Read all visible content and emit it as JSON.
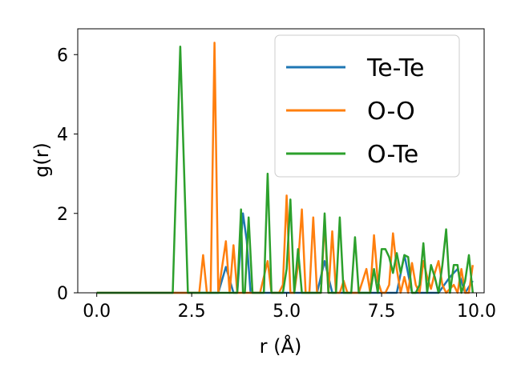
{
  "chart_data": {
    "type": "line",
    "title": "",
    "xlabel": "r (Å)",
    "ylabel": "g(r)",
    "xlim": [
      -0.5,
      10.2
    ],
    "ylim": [
      0,
      6.65
    ],
    "xticks": [
      0.0,
      2.5,
      5.0,
      7.5,
      10.0
    ],
    "xtick_labels": [
      "0.0",
      "2.5",
      "5.0",
      "7.5",
      "10.0"
    ],
    "yticks": [
      0,
      2,
      4,
      6
    ],
    "ytick_labels": [
      "0",
      "2",
      "4",
      "6"
    ],
    "legend_position": "top-right",
    "series": [
      {
        "name": "Te-Te",
        "color": "#1f77b4",
        "x": [
          0,
          2.0,
          3.2,
          3.4,
          3.6,
          3.7,
          3.85,
          3.95,
          4.05,
          4.2,
          5.8,
          6.0,
          6.2,
          6.4,
          7.9,
          8.1,
          8.3,
          9.0,
          9.3,
          9.5,
          9.7,
          9.9
        ],
        "y": [
          0,
          0,
          0,
          0.65,
          0,
          0,
          2.0,
          1.3,
          0,
          0,
          0,
          0.8,
          0,
          0,
          0,
          0.95,
          0,
          0,
          0.4,
          0.6,
          0,
          0.3
        ]
      },
      {
        "name": "O-O",
        "color": "#ff7f0e",
        "x": [
          0,
          2.5,
          2.7,
          2.8,
          2.9,
          3.0,
          3.1,
          3.2,
          3.4,
          3.5,
          3.6,
          3.7,
          3.8,
          3.9,
          4.0,
          4.1,
          4.2,
          4.3,
          4.5,
          4.6,
          4.8,
          4.9,
          5.0,
          5.1,
          5.2,
          5.3,
          5.4,
          5.5,
          5.6,
          5.7,
          5.8,
          5.9,
          6.0,
          6.1,
          6.2,
          6.3,
          6.4,
          6.5,
          6.6,
          6.7,
          6.8,
          6.9,
          7.0,
          7.1,
          7.2,
          7.3,
          7.4,
          7.5,
          7.6,
          7.7,
          7.8,
          7.9,
          8.0,
          8.1,
          8.2,
          8.3,
          8.4,
          8.5,
          8.6,
          8.7,
          8.8,
          8.9,
          9.0,
          9.1,
          9.2,
          9.3,
          9.4,
          9.5,
          9.6,
          9.7,
          9.8,
          9.9
        ],
        "y": [
          0,
          0,
          0,
          0.95,
          0,
          0,
          6.3,
          0,
          1.3,
          0,
          1.2,
          0,
          0,
          0,
          0,
          0,
          0,
          0,
          0.8,
          0,
          0,
          0.2,
          2.45,
          0,
          0,
          0.7,
          2.1,
          0,
          0,
          1.9,
          0,
          0,
          1.8,
          0,
          1.55,
          0,
          0,
          0.3,
          0,
          0,
          0,
          0,
          0.3,
          0.6,
          0,
          1.45,
          0.3,
          0,
          0,
          0.2,
          1.5,
          0.6,
          0,
          0.4,
          0,
          0.75,
          0.2,
          0,
          0.8,
          0.4,
          0.1,
          0.5,
          0.8,
          0.2,
          0,
          0.1,
          0.2,
          0,
          0.6,
          0,
          0,
          0.7
        ]
      },
      {
        "name": "O-Te",
        "color": "#2ca02c",
        "x": [
          0,
          2.0,
          2.2,
          2.4,
          3.5,
          3.6,
          3.7,
          3.8,
          3.85,
          3.9,
          4.0,
          4.1,
          4.2,
          4.3,
          4.4,
          4.5,
          4.6,
          4.7,
          4.8,
          4.9,
          5.0,
          5.1,
          5.2,
          5.3,
          5.4,
          5.5,
          5.6,
          5.7,
          5.8,
          5.9,
          6.0,
          6.1,
          6.2,
          6.3,
          6.4,
          6.5,
          6.6,
          6.7,
          6.8,
          6.9,
          7.0,
          7.1,
          7.2,
          7.3,
          7.4,
          7.5,
          7.6,
          7.7,
          7.8,
          7.9,
          8.0,
          8.1,
          8.2,
          8.3,
          8.4,
          8.5,
          8.6,
          8.7,
          8.8,
          8.9,
          9.0,
          9.1,
          9.2,
          9.3,
          9.4,
          9.5,
          9.6,
          9.7,
          9.8,
          9.9
        ],
        "y": [
          0,
          0,
          6.2,
          0,
          0,
          0,
          0,
          2.1,
          0,
          0,
          1.9,
          0,
          0,
          0,
          0,
          3.0,
          0,
          0,
          0,
          0,
          0.6,
          2.35,
          0,
          1.1,
          0,
          0,
          0,
          0,
          0,
          0,
          2.0,
          0,
          0,
          0,
          1.9,
          0,
          0,
          0,
          1.4,
          0,
          0,
          0,
          0,
          0.6,
          0,
          1.1,
          1.1,
          0.9,
          0.5,
          1.0,
          0.5,
          0.95,
          0.9,
          0,
          0,
          0.2,
          1.25,
          0,
          0.7,
          0.4,
          0,
          0.7,
          1.6,
          0,
          0.7,
          0.7,
          0,
          0.3,
          0.95,
          0
        ]
      }
    ]
  }
}
